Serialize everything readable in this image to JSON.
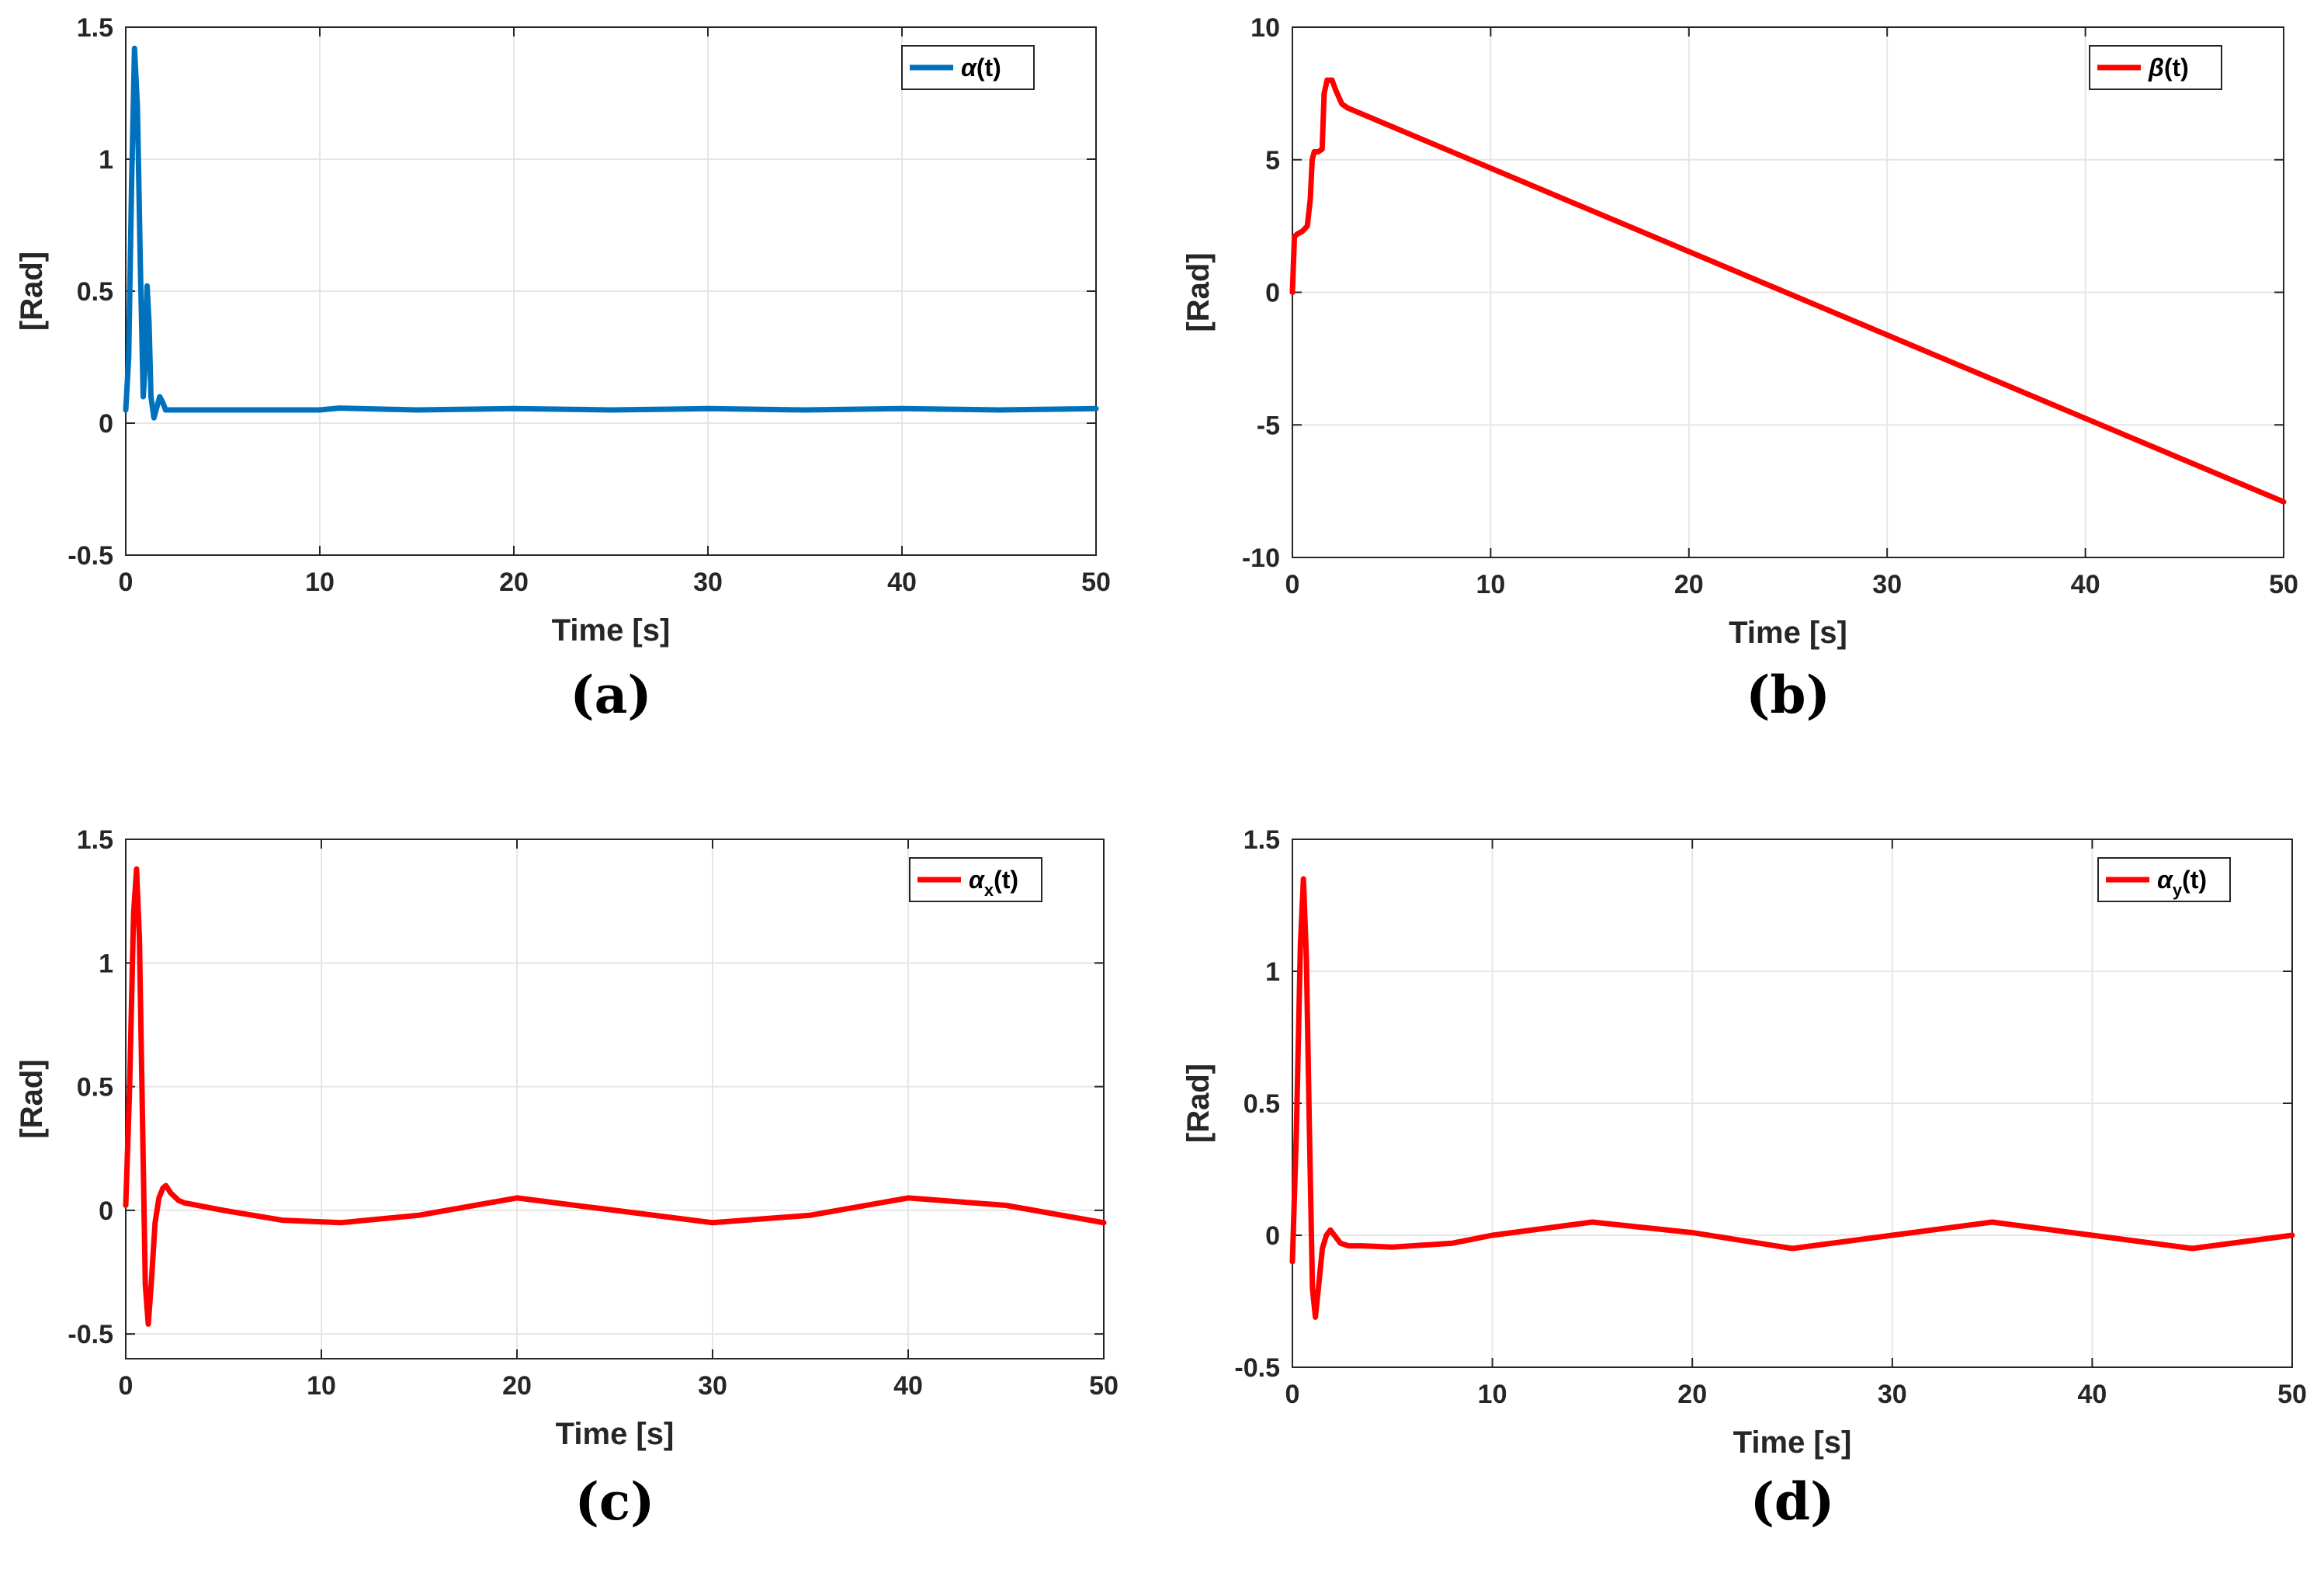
{
  "chart_data": [
    {
      "type": "line",
      "panel_label": "(a)",
      "xlabel": "Time [s]",
      "ylabel": "[Rad]",
      "xlim": [
        0,
        50
      ],
      "ylim": [
        -0.5,
        1.5
      ],
      "xticks": [
        0,
        10,
        20,
        30,
        40,
        50
      ],
      "xtick_labels": [
        "0",
        "10",
        "20",
        "30",
        "40",
        "50"
      ],
      "yticks": [
        -0.5,
        0,
        0.5,
        1,
        1.5
      ],
      "ytick_labels": [
        "-0.5",
        "0",
        "0.5",
        "1",
        "1.5"
      ],
      "grid": true,
      "legend_position": "top-right",
      "series": [
        {
          "name": "α(t)",
          "legend_main": "α",
          "legend_sub": "",
          "legend_tail": "(t)",
          "color": "#0072BD",
          "x": [
            0,
            0.15,
            0.3,
            0.45,
            0.6,
            0.75,
            0.9,
            1.0,
            1.1,
            1.2,
            1.3,
            1.45,
            1.6,
            1.75,
            1.9,
            2.05,
            2.3,
            2.6,
            3,
            5,
            8,
            10,
            11,
            15,
            20,
            25,
            30,
            35,
            40,
            45,
            50
          ],
          "values": [
            0.05,
            0.25,
            0.9,
            1.42,
            1.2,
            0.6,
            0.1,
            0.22,
            0.52,
            0.38,
            0.1,
            0.02,
            0.06,
            0.1,
            0.08,
            0.05,
            0.05,
            0.05,
            0.05,
            0.05,
            0.05,
            0.05,
            0.057,
            0.05,
            0.055,
            0.05,
            0.055,
            0.05,
            0.055,
            0.05,
            0.055
          ]
        }
      ]
    },
    {
      "type": "line",
      "panel_label": "(b)",
      "xlabel": "Time [s]",
      "ylabel": "[Rad]",
      "xlim": [
        0,
        50
      ],
      "ylim": [
        -10,
        10
      ],
      "xticks": [
        0,
        10,
        20,
        30,
        40,
        50
      ],
      "xtick_labels": [
        "0",
        "10",
        "20",
        "30",
        "40",
        "50"
      ],
      "yticks": [
        -10,
        -5,
        0,
        5,
        10
      ],
      "ytick_labels": [
        "-10",
        "-5",
        "0",
        "5",
        "10"
      ],
      "grid": true,
      "legend_position": "top-right",
      "series": [
        {
          "name": "β(t)",
          "legend_main": "β",
          "legend_sub": "",
          "legend_tail": "(t)",
          "color": "#FF0000",
          "x": [
            0,
            0.1,
            0.25,
            0.5,
            0.75,
            0.9,
            1.0,
            1.1,
            1.3,
            1.5,
            1.6,
            1.75,
            2.0,
            2.2,
            2.5,
            2.8,
            50
          ],
          "values": [
            0,
            2.1,
            2.2,
            2.3,
            2.5,
            3.5,
            5.0,
            5.3,
            5.3,
            5.4,
            7.5,
            8.0,
            8.0,
            7.6,
            7.1,
            6.95,
            -7.9
          ]
        }
      ]
    },
    {
      "type": "line",
      "panel_label": "(c)",
      "xlabel": "Time [s]",
      "ylabel": "[Rad]",
      "xlim": [
        0,
        50
      ],
      "ylim": [
        -0.6,
        1.5
      ],
      "xticks": [
        0,
        10,
        20,
        30,
        40,
        50
      ],
      "xtick_labels": [
        "0",
        "10",
        "20",
        "30",
        "40",
        "50"
      ],
      "yticks": [
        -0.5,
        0,
        0.5,
        1,
        1.5
      ],
      "ytick_labels": [
        "-0.5",
        "0",
        "0.5",
        "1",
        "1.5"
      ],
      "grid": true,
      "legend_position": "top-right",
      "series": [
        {
          "name": "αx(t)",
          "legend_main": "α",
          "legend_sub": "x",
          "legend_tail": "(t)",
          "color": "#FF0000",
          "x": [
            0,
            0.2,
            0.4,
            0.55,
            0.7,
            0.85,
            1.0,
            1.15,
            1.3,
            1.5,
            1.7,
            1.9,
            2.05,
            2.3,
            2.7,
            3,
            5,
            8,
            11,
            15,
            20,
            25,
            30,
            35,
            40,
            45,
            50
          ],
          "values": [
            0.02,
            0.5,
            1.2,
            1.38,
            1.1,
            0.4,
            -0.3,
            -0.46,
            -0.3,
            -0.05,
            0.05,
            0.09,
            0.1,
            0.07,
            0.04,
            0.03,
            0.0,
            -0.04,
            -0.05,
            -0.02,
            0.05,
            0.0,
            -0.05,
            -0.02,
            0.05,
            0.02,
            -0.05
          ]
        }
      ]
    },
    {
      "type": "line",
      "panel_label": "(d)",
      "xlabel": "Time [s]",
      "ylabel": "[Rad]",
      "xlim": [
        0,
        50
      ],
      "ylim": [
        -0.5,
        1.5
      ],
      "xticks": [
        0,
        10,
        20,
        30,
        40,
        50
      ],
      "xtick_labels": [
        "0",
        "10",
        "20",
        "30",
        "40",
        "50"
      ],
      "yticks": [
        -0.5,
        0,
        0.5,
        1,
        1.5
      ],
      "ytick_labels": [
        "-0.5",
        "0",
        "0.5",
        "1",
        "1.5"
      ],
      "grid": true,
      "legend_position": "top-right",
      "series": [
        {
          "name": "αy(t)",
          "legend_main": "α",
          "legend_sub": "y",
          "legend_tail": "(t)",
          "color": "#FF0000",
          "x": [
            0,
            0.2,
            0.4,
            0.55,
            0.7,
            0.85,
            1.0,
            1.15,
            1.3,
            1.5,
            1.7,
            1.9,
            2.1,
            2.4,
            2.8,
            3.5,
            5,
            8,
            10,
            15,
            20,
            25,
            30,
            35,
            40,
            45,
            50
          ],
          "values": [
            -0.1,
            0.4,
            1.1,
            1.35,
            1.05,
            0.4,
            -0.2,
            -0.31,
            -0.2,
            -0.05,
            0.0,
            0.02,
            0.0,
            -0.03,
            -0.04,
            -0.04,
            -0.045,
            -0.03,
            0.0,
            0.05,
            0.01,
            -0.05,
            0.0,
            0.05,
            0.0,
            -0.05,
            0.0
          ]
        }
      ]
    }
  ]
}
